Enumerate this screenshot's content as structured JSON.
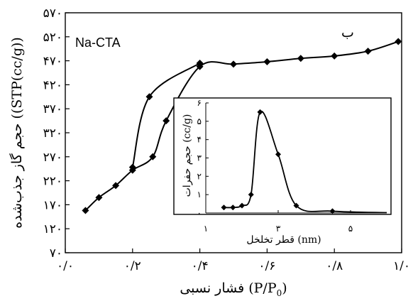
{
  "chart_data": [
    {
      "type": "line",
      "title": "",
      "series_name": "Na-CTA",
      "corner_label": "ب",
      "xlabel": "فشار نسبی (P/P₀)",
      "xlabel_parts": {
        "text": "فشار نسبی ",
        "open": "(P/P",
        "sub": "0",
        "close": ")"
      },
      "ylabel": "حجم گاز جذب‌شده ((STP(cc/g))",
      "xlim": [
        0,
        1
      ],
      "ylim": [
        70,
        570
      ],
      "xticks": [
        {
          "v": 0.0,
          "label": "۰/۰"
        },
        {
          "v": 0.2,
          "label": "۰/۲"
        },
        {
          "v": 0.4,
          "label": "۰/۴"
        },
        {
          "v": 0.6,
          "label": "۰/۶"
        },
        {
          "v": 0.8,
          "label": "۰/۸"
        },
        {
          "v": 1.0,
          "label": "۱/۰"
        }
      ],
      "yticks": [
        {
          "v": 70,
          "label": "۷۰"
        },
        {
          "v": 120,
          "label": "۱۲۰"
        },
        {
          "v": 170,
          "label": "۱۷۰"
        },
        {
          "v": 220,
          "label": "۲۲۰"
        },
        {
          "v": 270,
          "label": "۲۷۰"
        },
        {
          "v": 320,
          "label": "۳۲۰"
        },
        {
          "v": 370,
          "label": "۳۷۰"
        },
        {
          "v": 420,
          "label": "۴۲۰"
        },
        {
          "v": 470,
          "label": "۴۷۰"
        },
        {
          "v": 520,
          "label": "۵۲۰"
        },
        {
          "v": 570,
          "label": "۵۷۰"
        }
      ],
      "series": [
        {
          "values": [
            [
              0.06,
              158
            ],
            [
              0.1,
              185
            ],
            [
              0.15,
              210
            ],
            [
              0.2,
              242
            ],
            [
              0.26,
              270
            ],
            [
              0.3,
              345
            ],
            [
              0.4,
              458
            ],
            [
              0.5,
              463
            ],
            [
              0.6,
              468
            ],
            [
              0.7,
              475
            ],
            [
              0.8,
              480
            ],
            [
              0.9,
              490
            ],
            [
              0.99,
              510
            ]
          ]
        },
        {
          "values": [
            [
              0.2,
              248
            ],
            [
              0.25,
              395
            ],
            [
              0.4,
              465
            ]
          ]
        }
      ]
    },
    {
      "type": "line",
      "inset": true,
      "xlabel": "قطر تخلخل (nm)",
      "ylabel": "حجم حفرات (cc/g)",
      "ylabel_parts": {
        "text": "حجم حفرات ",
        "unit": "(cc/g)"
      },
      "xlim": [
        1,
        6
      ],
      "ylim": [
        0,
        6
      ],
      "xticks": [
        {
          "v": 1,
          "label": "۱"
        },
        {
          "v": 3,
          "label": "۳"
        },
        {
          "v": 5,
          "label": "۵"
        }
      ],
      "yticks": [
        {
          "v": 0,
          "label": "۰"
        },
        {
          "v": 1,
          "label": "۱"
        },
        {
          "v": 2,
          "label": "۲"
        },
        {
          "v": 3,
          "label": "۳"
        },
        {
          "v": 4,
          "label": "۴"
        },
        {
          "v": 5,
          "label": "۵"
        },
        {
          "v": 6,
          "label": "۶"
        }
      ],
      "series": [
        {
          "values": [
            [
              1.5,
              0.3
            ],
            [
              1.75,
              0.3
            ],
            [
              2.0,
              0.4
            ],
            [
              2.25,
              1.0
            ],
            [
              2.5,
              5.5
            ],
            [
              3.0,
              3.2
            ],
            [
              3.5,
              0.4
            ],
            [
              4.5,
              0.1
            ]
          ],
          "tail_to": 6.0,
          "tail_value": 0.02
        }
      ]
    }
  ]
}
